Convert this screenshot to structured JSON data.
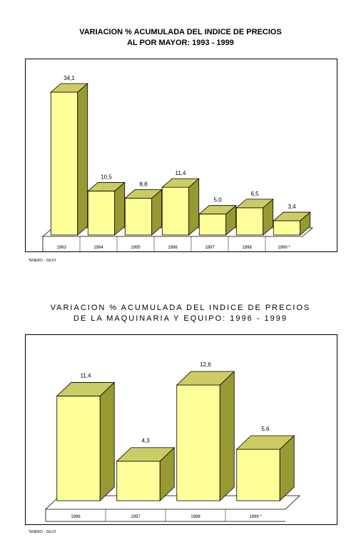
{
  "charts": [
    {
      "title_line1": "VARIACION % ACUMULADA DEL INDICE DE PRECIOS",
      "title_line2": "AL POR MAYOR: 1993 - 1999",
      "footnote": "*ENERO - JULIO"
    },
    {
      "title_line1": "VARIACION % ACUMULADA DEL INDICE DE PRECIOS",
      "title_line2": "DE LA MAQUINARIA Y EQUIPO: 1996 - 1999",
      "footnote": "*ENERO - JULIO"
    }
  ],
  "chart_data": [
    {
      "type": "bar",
      "title": "VARIACION % ACUMULADA DEL INDICE DE PRECIOS AL POR MAYOR: 1993 - 1999",
      "categories": [
        "1993",
        "1994",
        "1995",
        "1996",
        "1997",
        "1998",
        "1999 *"
      ],
      "values": [
        34.1,
        10.5,
        8.8,
        11.4,
        5.0,
        6.5,
        3.4
      ],
      "value_labels": [
        "34,1",
        "10,5",
        "8,8",
        "11,4",
        "5,0",
        "6,5",
        "3,4"
      ],
      "ylim": [
        0,
        34.1
      ],
      "grid": false,
      "style": "3d",
      "colors": {
        "face": "#ffff99",
        "side": "#999933",
        "top": "#cccc66"
      }
    },
    {
      "type": "bar",
      "title": "VARIACION % ACUMULADA DEL INDICE DE PRECIOS DE LA MAQUINARIA Y EQUIPO: 1996 - 1999",
      "categories": [
        "1996",
        "1997",
        "1998",
        "1999 *"
      ],
      "values": [
        11.4,
        4.3,
        12.6,
        5.6
      ],
      "value_labels": [
        "11,4",
        "4,3",
        "12,6",
        "5,6"
      ],
      "ylim": [
        0,
        12.6
      ],
      "grid": false,
      "style": "3d",
      "colors": {
        "face": "#ffff99",
        "side": "#999933",
        "top": "#cccc66"
      }
    }
  ]
}
